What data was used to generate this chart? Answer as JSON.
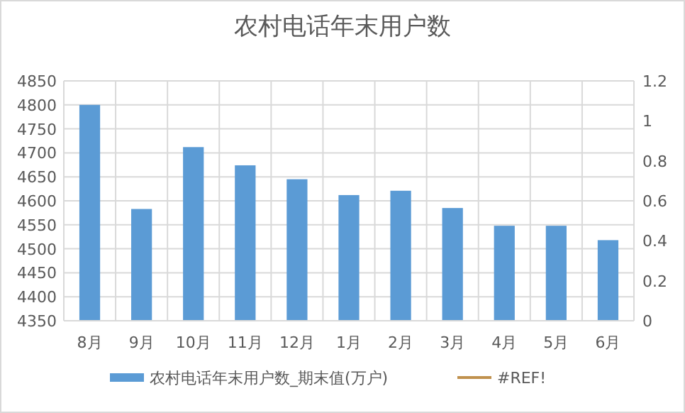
{
  "chart_data": {
    "type": "bar",
    "title": "农村电话年末用户数",
    "categories": [
      "8月",
      "9月",
      "10月",
      "11月",
      "12月",
      "1月",
      "2月",
      "3月",
      "4月",
      "5月",
      "6月"
    ],
    "series": [
      {
        "name": "农村电话年末用户数_期末值(万户)",
        "color": "#5b9bd5",
        "values": [
          4800,
          4583,
          4712,
          4674,
          4645,
          4612,
          4621,
          4585,
          4548,
          4548,
          4518
        ]
      },
      {
        "name": "#REF!",
        "type": "line",
        "axis": "y2",
        "color": "#c0914e",
        "values": [
          null,
          null,
          null,
          null,
          null,
          null,
          null,
          null,
          null,
          null,
          null
        ]
      }
    ],
    "ylim": [
      4350,
      4850
    ],
    "yticks": [
      4350,
      4400,
      4450,
      4500,
      4550,
      4600,
      4650,
      4700,
      4750,
      4800,
      4850
    ],
    "y2lim": [
      0,
      1.2
    ],
    "y2ticks": [
      0,
      0.2,
      0.4,
      0.6,
      0.8,
      1,
      1.2
    ],
    "grid": true,
    "legend": "bottom"
  }
}
